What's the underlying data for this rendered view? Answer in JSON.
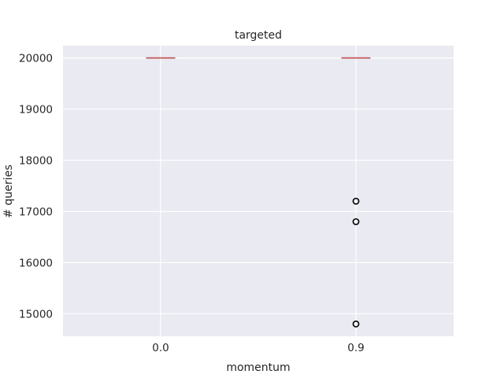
{
  "chart_data": {
    "type": "box",
    "title": "targeted",
    "xlabel": "momentum",
    "ylabel": "# queries",
    "categories": [
      "0.0",
      "0.9"
    ],
    "ylim": [
      14560,
      20240
    ],
    "yticks": [
      15000,
      16000,
      17000,
      18000,
      19000,
      20000
    ],
    "grid": true,
    "boxes": [
      {
        "category": "0.0",
        "min": 20000,
        "q1": 20000,
        "median": 20000,
        "q3": 20000,
        "max": 20000,
        "outliers": []
      },
      {
        "category": "0.9",
        "min": 20000,
        "q1": 20000,
        "median": 20000,
        "q3": 20000,
        "max": 20000,
        "outliers": [
          17200,
          16800,
          14800
        ]
      }
    ],
    "colors": {
      "background": "#eaeaf2",
      "grid": "#ffffff",
      "median": "#c44e52",
      "box": "#262626",
      "outlier": "#000000"
    }
  }
}
